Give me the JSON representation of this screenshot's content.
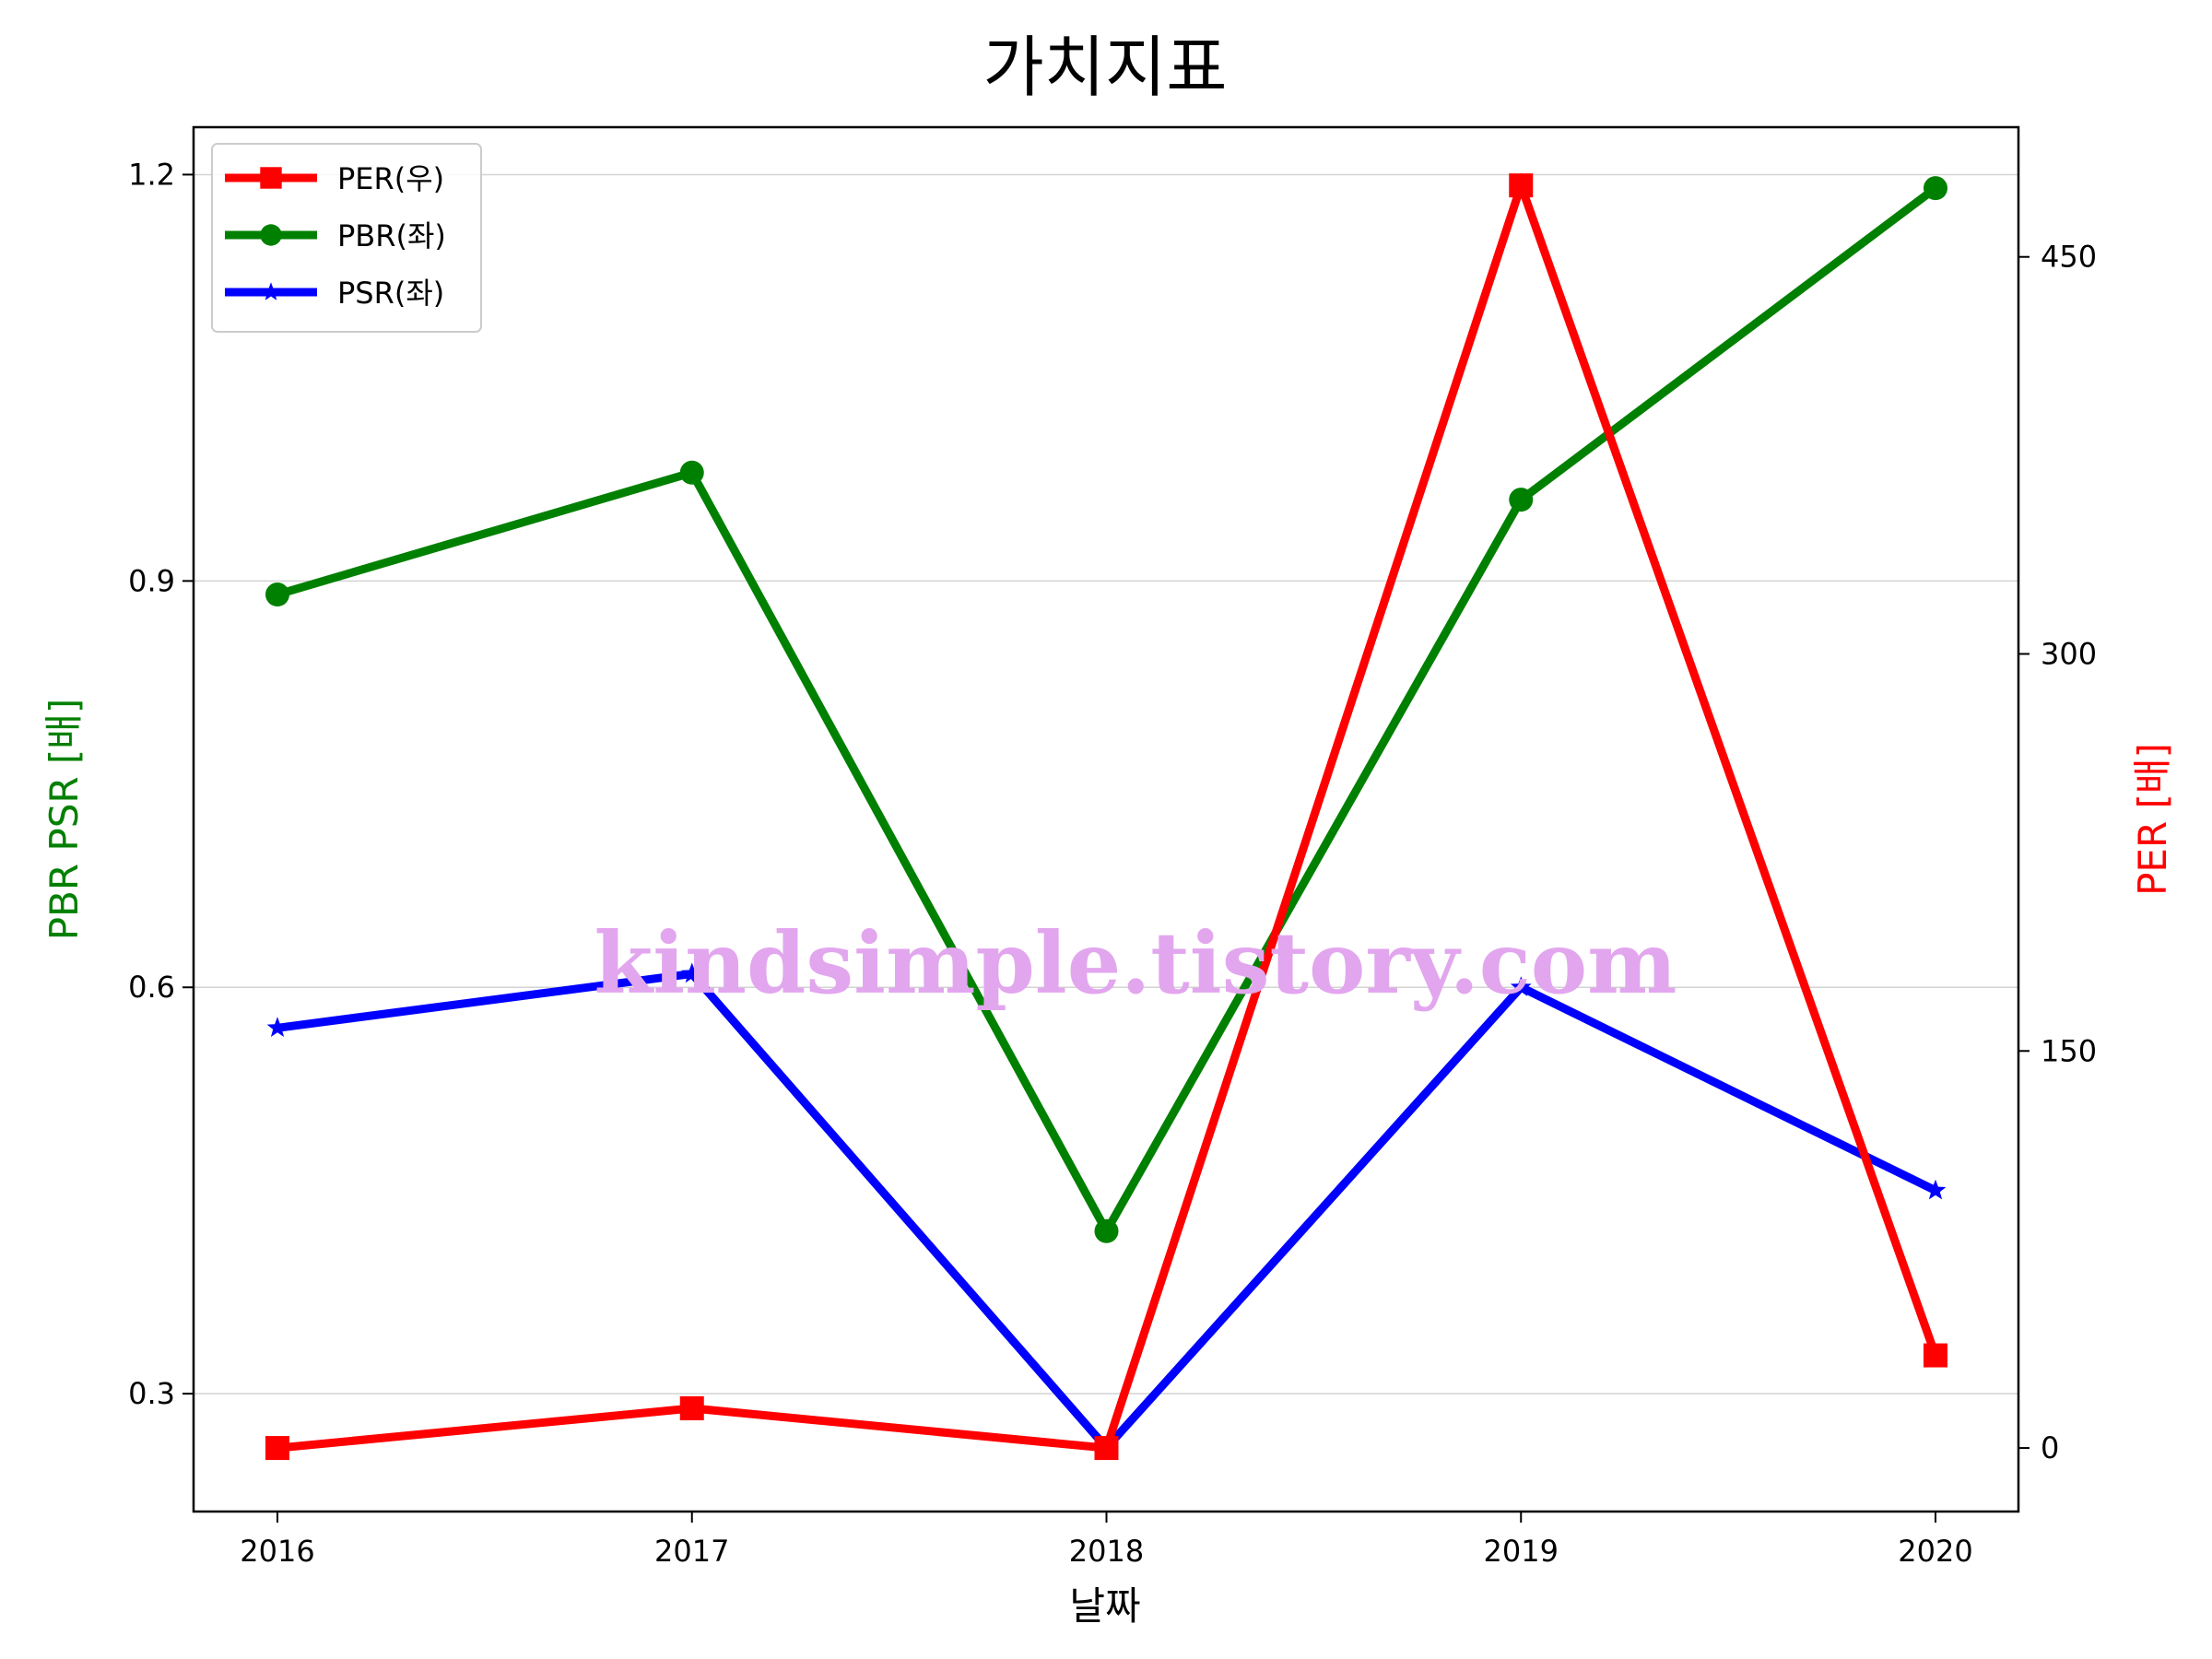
{
  "chart_data": {
    "type": "line",
    "title": "가치지표",
    "xlabel": "날짜",
    "ylabel_left": "PBR PSR [배]",
    "ylabel_right": "PER [배]",
    "categories": [
      "2016",
      "2017",
      "2018",
      "2019",
      "2020"
    ],
    "left_axis": {
      "ticks": [
        "0.3",
        "0.6",
        "0.9",
        "1.2"
      ],
      "ylim": [
        0.213,
        1.235
      ]
    },
    "right_axis": {
      "ticks": [
        "0",
        "150",
        "300",
        "450"
      ],
      "ylim": [
        -24,
        499
      ]
    },
    "series": [
      {
        "name": "PER(우)",
        "axis": "right",
        "color": "#ff0000",
        "marker": "square",
        "values": [
          0,
          15,
          0,
          477,
          35
        ]
      },
      {
        "name": "PBR(좌)",
        "axis": "left",
        "color": "#008000",
        "marker": "circle",
        "values": [
          0.89,
          0.98,
          0.42,
          0.96,
          1.19
        ]
      },
      {
        "name": "PSR(좌)",
        "axis": "left",
        "color": "#0000ff",
        "marker": "star",
        "values": [
          0.57,
          0.61,
          0.26,
          0.6,
          0.45
        ]
      }
    ],
    "grid": true,
    "legend_position": "top-left",
    "watermark": "kindsimple.tistory.com"
  }
}
